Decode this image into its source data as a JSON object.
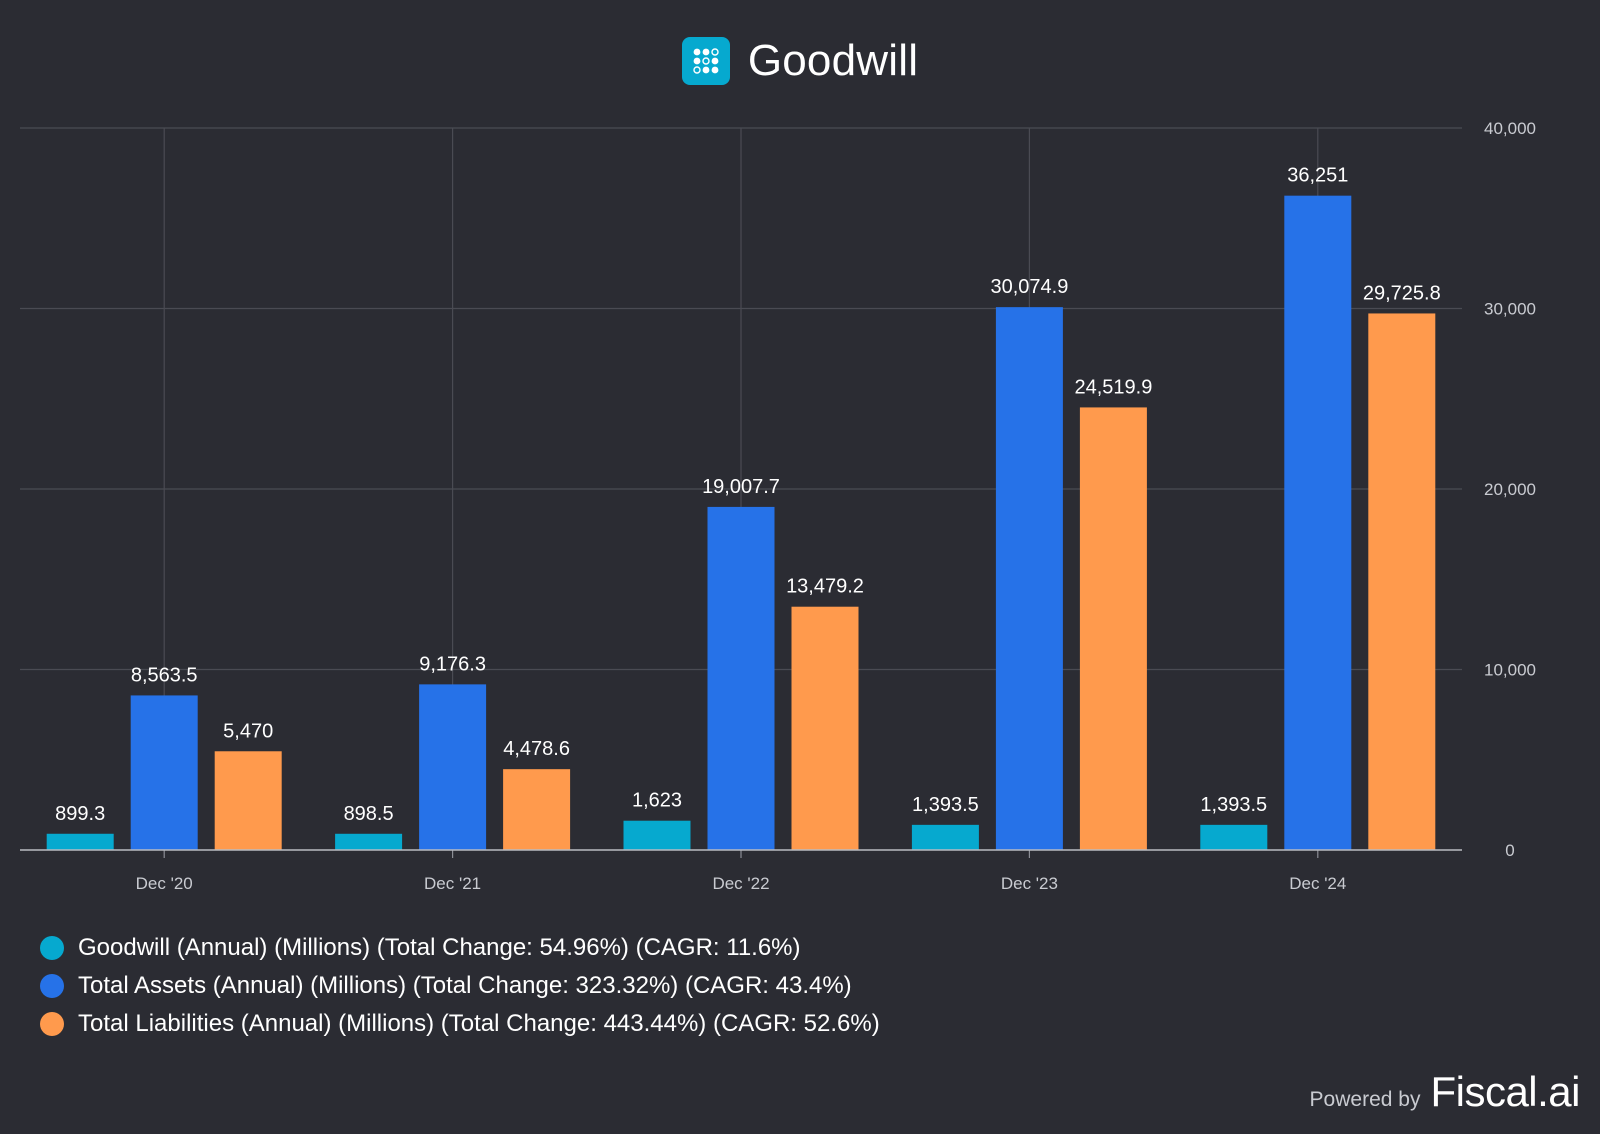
{
  "header": {
    "title": "Goodwill",
    "logo_icon": "grid-dots-icon"
  },
  "footer": {
    "powered_label": "Powered by",
    "brand": "Fiscal.ai"
  },
  "colors": {
    "goodwill": "#06a9cf",
    "assets": "#2672e8",
    "liabilities": "#ff9a4d"
  },
  "chart_data": {
    "type": "bar",
    "title": "Goodwill",
    "categories": [
      "Dec '20",
      "Dec '21",
      "Dec '22",
      "Dec '23",
      "Dec '24"
    ],
    "ylim": [
      0,
      40000
    ],
    "yticks": [
      0,
      10000,
      20000,
      30000,
      40000
    ],
    "ytick_labels": [
      "0",
      "10,000",
      "20,000",
      "30,000",
      "40,000"
    ],
    "yaxis_position": "right",
    "grid": true,
    "legend_position": "bottom-left",
    "series": [
      {
        "name": "Goodwill (Annual) (Millions) (Total Change: 54.96%) (CAGR: 11.6%)",
        "values": [
          899.3,
          898.5,
          1623,
          1393.5,
          1393.5
        ],
        "labels": [
          "899.3",
          "898.5",
          "1,623",
          "1,393.5",
          "1,393.5"
        ],
        "color": "#06a9cf"
      },
      {
        "name": "Total Assets (Annual) (Millions) (Total Change: 323.32%) (CAGR: 43.4%)",
        "values": [
          8563.5,
          9176.3,
          19007.7,
          30074.9,
          36251
        ],
        "labels": [
          "8,563.5",
          "9,176.3",
          "19,007.7",
          "30,074.9",
          "36,251"
        ],
        "color": "#2672e8"
      },
      {
        "name": "Total Liabilities (Annual) (Millions) (Total Change: 443.44%) (CAGR: 52.6%)",
        "values": [
          5470,
          4478.6,
          13479.2,
          24519.9,
          29725.8
        ],
        "labels": [
          "5,470",
          "4,478.6",
          "13,479.2",
          "24,519.9",
          "29,725.8"
        ],
        "color": "#ff9a4d"
      }
    ]
  }
}
